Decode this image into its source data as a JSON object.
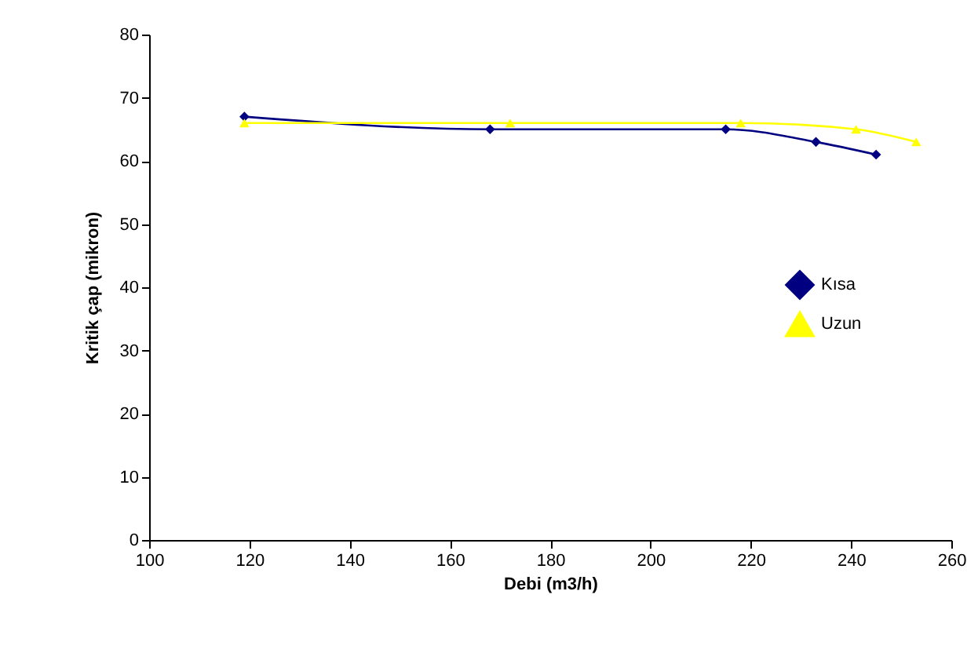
{
  "chart_data": {
    "type": "line",
    "xlabel": "Debi (m3/h)",
    "ylabel": "Kritik çap (mikron)",
    "xlim": [
      100,
      260
    ],
    "xticks": [
      100,
      120,
      140,
      160,
      180,
      200,
      220,
      240,
      260
    ],
    "ylim": [
      0,
      80
    ],
    "yticks": [
      0,
      10,
      20,
      30,
      40,
      50,
      60,
      70,
      80
    ],
    "legend": "right",
    "grid": false,
    "series": [
      {
        "name": "Kısa",
        "color": "#000080",
        "marker": "diamond",
        "x": [
          119,
          168,
          215,
          233,
          245
        ],
        "values": [
          67,
          65,
          65,
          63,
          61
        ]
      },
      {
        "name": "Uzun",
        "color": "#ffff00",
        "marker": "triangle",
        "x": [
          119,
          172,
          218,
          241,
          253
        ],
        "values": [
          66,
          66,
          66,
          65,
          63
        ]
      }
    ]
  }
}
